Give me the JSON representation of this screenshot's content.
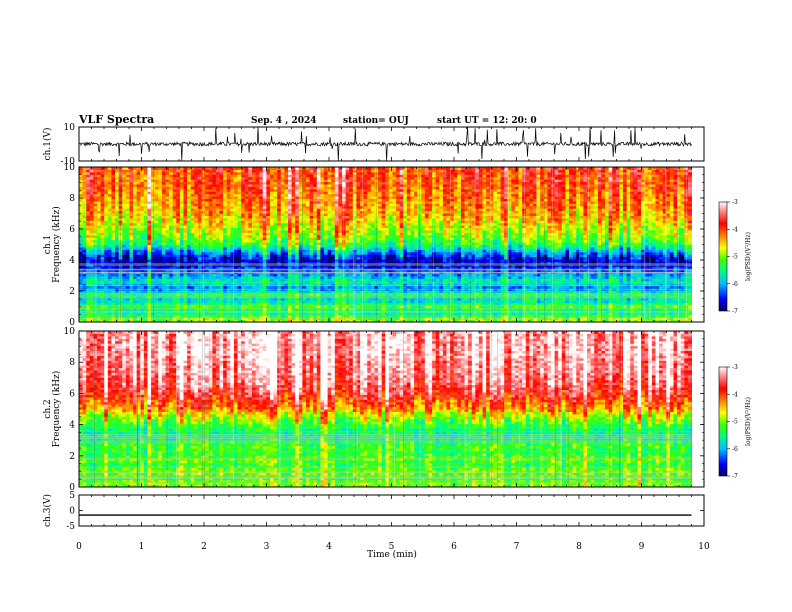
{
  "chart_data": {
    "type": "heatmap",
    "title": "VLF Spectra",
    "header": {
      "date": "Sep. 4 , 2024",
      "station": "station= OUJ",
      "start": "start  UT =  12: 20: 0"
    },
    "xlabel": "Time (min)",
    "xlim": [
      0,
      10
    ],
    "xticks": [
      "0",
      "1",
      "2",
      "3",
      "4",
      "5",
      "6",
      "7",
      "8",
      "9",
      "10"
    ],
    "data_end_min": 9.8,
    "panels": [
      {
        "kind": "waveform",
        "ylabel": "ch.1(V)",
        "ylim": [
          -10,
          10
        ],
        "yticks": [
          "10",
          "-10"
        ],
        "baseline": 0
      },
      {
        "kind": "spectrogram",
        "ylabel_lines": [
          "ch.1",
          "Frequency (kHz)"
        ],
        "ylim": [
          0,
          10
        ],
        "yticks": [
          "0",
          "2",
          "4",
          "6",
          "8",
          "10"
        ],
        "profile": [
          {
            "f": 0.2,
            "v": -5.0
          },
          {
            "f": 0.6,
            "v": -5.6
          },
          {
            "f": 1.0,
            "v": -5.2
          },
          {
            "f": 1.4,
            "v": -5.8
          },
          {
            "f": 1.8,
            "v": -5.4
          },
          {
            "f": 2.2,
            "v": -6.2
          },
          {
            "f": 2.6,
            "v": -5.6
          },
          {
            "f": 3.0,
            "v": -6.0
          },
          {
            "f": 3.4,
            "v": -6.4
          },
          {
            "f": 3.8,
            "v": -6.7
          },
          {
            "f": 4.2,
            "v": -6.6
          },
          {
            "f": 4.6,
            "v": -6.0
          },
          {
            "f": 5.0,
            "v": -5.4
          },
          {
            "f": 5.5,
            "v": -5.0
          },
          {
            "f": 6.0,
            "v": -4.8
          },
          {
            "f": 6.5,
            "v": -4.6
          },
          {
            "f": 7.0,
            "v": -4.4
          },
          {
            "f": 7.5,
            "v": -4.3
          },
          {
            "f": 8.0,
            "v": -4.2
          },
          {
            "f": 8.5,
            "v": -4.1
          },
          {
            "f": 9.0,
            "v": -4.0
          },
          {
            "f": 9.5,
            "v": -4.0
          },
          {
            "f": 10.0,
            "v": -3.9
          }
        ]
      },
      {
        "kind": "spectrogram",
        "ylabel_lines": [
          "ch.2",
          "Frequency (kHz)"
        ],
        "ylim": [
          0,
          10
        ],
        "yticks": [
          "0",
          "2",
          "4",
          "6",
          "8",
          "10"
        ],
        "profile": [
          {
            "f": 0.2,
            "v": -5.0
          },
          {
            "f": 0.6,
            "v": -5.2
          },
          {
            "f": 1.0,
            "v": -5.0
          },
          {
            "f": 1.4,
            "v": -5.3
          },
          {
            "f": 1.8,
            "v": -5.1
          },
          {
            "f": 2.2,
            "v": -5.3
          },
          {
            "f": 2.6,
            "v": -5.2
          },
          {
            "f": 3.0,
            "v": -5.4
          },
          {
            "f": 3.4,
            "v": -5.5
          },
          {
            "f": 3.8,
            "v": -5.4
          },
          {
            "f": 4.2,
            "v": -5.1
          },
          {
            "f": 4.6,
            "v": -4.8
          },
          {
            "f": 5.0,
            "v": -4.3
          },
          {
            "f": 5.5,
            "v": -4.0
          },
          {
            "f": 6.0,
            "v": -3.7
          },
          {
            "f": 6.5,
            "v": -3.5
          },
          {
            "f": 7.0,
            "v": -3.4
          },
          {
            "f": 7.5,
            "v": -3.3
          },
          {
            "f": 8.0,
            "v": -3.3
          },
          {
            "f": 8.5,
            "v": -3.2
          },
          {
            "f": 9.0,
            "v": -3.2
          },
          {
            "f": 9.5,
            "v": -3.2
          },
          {
            "f": 10.0,
            "v": -3.2
          }
        ]
      },
      {
        "kind": "waveform",
        "ylabel": "ch.3(V)",
        "ylim": [
          -5,
          5
        ],
        "yticks": [
          "5",
          "0",
          "-5"
        ],
        "baseline": -1.5
      }
    ],
    "colorbar": {
      "label": "log(PSD)(V²/Hz)",
      "ticks": [
        "-3",
        "-4",
        "-5",
        "-6",
        "-7"
      ],
      "range": [
        -7,
        -3
      ],
      "colors": [
        "#000060",
        "#0000ff",
        "#00bfff",
        "#00ff80",
        "#40ff00",
        "#ffff00",
        "#ff8000",
        "#ff0000",
        "#ff9090",
        "#ffffff"
      ]
    }
  }
}
